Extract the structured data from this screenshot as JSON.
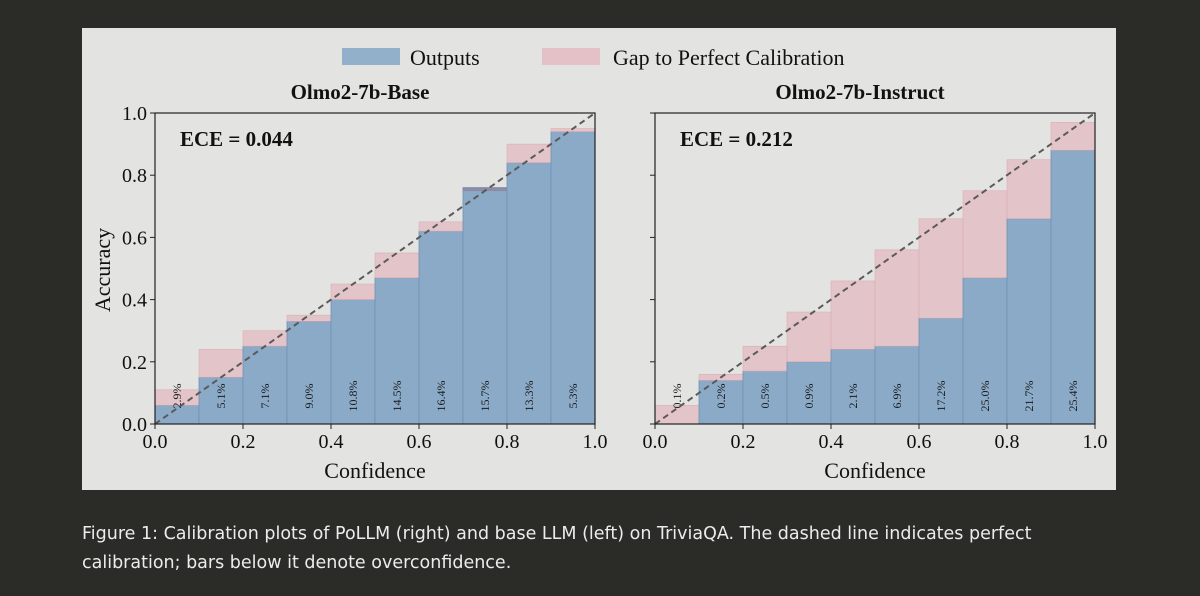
{
  "legend": {
    "outputs_label": "Outputs",
    "gap_label": "Gap to Perfect Calibration"
  },
  "colors": {
    "outputs": "#8aaac8",
    "gap": "#e4c1c6",
    "overlap": "#8a88a0",
    "edge": "#6e90b2",
    "diagonal": "#5a5a5a",
    "figure_bg": "#e3e3e2",
    "page_bg": "#2b2b28"
  },
  "chart_data": [
    {
      "type": "bar",
      "title": "Olmo2-7b-Base",
      "xlabel": "Confidence",
      "ylabel": "Accuracy",
      "xlim": [
        0.0,
        1.0
      ],
      "ylim": [
        0.0,
        1.0
      ],
      "xticks": [
        "0.0",
        "0.2",
        "0.4",
        "0.6",
        "0.8",
        "1.0"
      ],
      "yticks": [
        "0.0",
        "0.2",
        "0.4",
        "0.6",
        "0.8",
        "1.0"
      ],
      "annotation": "ECE = 0.044",
      "bin_edges": [
        0.0,
        0.1,
        0.2,
        0.3,
        0.4,
        0.5,
        0.6,
        0.7,
        0.8,
        0.9,
        1.0
      ],
      "accuracy": [
        0.06,
        0.15,
        0.25,
        0.33,
        0.4,
        0.47,
        0.62,
        0.76,
        0.84,
        0.94
      ],
      "mean_confidence": [
        0.11,
        0.24,
        0.3,
        0.35,
        0.45,
        0.55,
        0.65,
        0.75,
        0.9,
        0.95
      ],
      "bin_share": [
        "2.9%",
        "5.1%",
        "7.1%",
        "9.0%",
        "10.8%",
        "14.5%",
        "16.4%",
        "15.7%",
        "13.3%",
        "5.3%"
      ]
    },
    {
      "type": "bar",
      "title": "Olmo2-7b-Instruct",
      "xlabel": "Confidence",
      "ylabel": "",
      "xlim": [
        0.0,
        1.0
      ],
      "ylim": [
        0.0,
        1.0
      ],
      "xticks": [
        "0.0",
        "0.2",
        "0.4",
        "0.6",
        "0.8",
        "1.0"
      ],
      "yticks": [],
      "annotation": "ECE = 0.212",
      "bin_edges": [
        0.0,
        0.1,
        0.2,
        0.3,
        0.4,
        0.5,
        0.6,
        0.7,
        0.8,
        0.9,
        1.0
      ],
      "accuracy": [
        0.0,
        0.14,
        0.17,
        0.2,
        0.24,
        0.25,
        0.34,
        0.47,
        0.66,
        0.88
      ],
      "mean_confidence": [
        0.06,
        0.16,
        0.25,
        0.36,
        0.46,
        0.56,
        0.66,
        0.75,
        0.85,
        0.97
      ],
      "bin_share": [
        "0.1%",
        "0.2%",
        "0.5%",
        "0.9%",
        "2.1%",
        "6.9%",
        "17.2%",
        "25.0%",
        "21.7%",
        "25.4%"
      ]
    }
  ],
  "caption": "Figure 1: Calibration plots of PoLLM (right) and base LLM (left) on TriviaQA. The dashed line indicates perfect calibration; bars below it denote overconfidence."
}
